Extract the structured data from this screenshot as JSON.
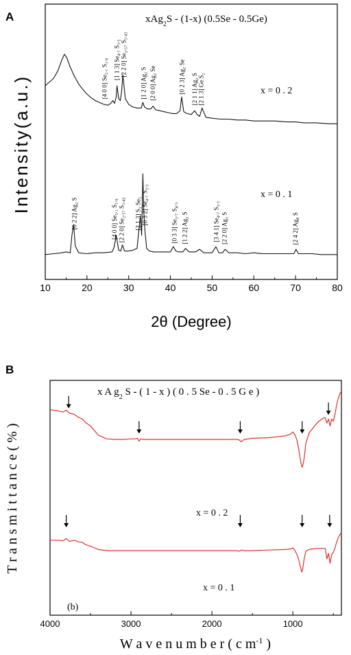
{
  "chart_data": [
    {
      "panel_label": "A",
      "type": "line",
      "title": "xAg2S - (1-x) (0.5Se - 0.5Ge)",
      "xlabel": "2θ (Degree)",
      "ylabel": "Intensity(a.u.)",
      "xlim": [
        10,
        80
      ],
      "xticks": [
        10,
        20,
        30,
        40,
        50,
        60,
        70,
        80
      ],
      "grid": false,
      "series": [
        {
          "name": "x = 0.2",
          "x": [
            10,
            11,
            12,
            13,
            14,
            14.6,
            15.2,
            16,
            17,
            18,
            19,
            20,
            21,
            22,
            23,
            24,
            25,
            25.7,
            26.2,
            26.6,
            27,
            27.2,
            27.6,
            28,
            28.3,
            28.6,
            29.2,
            30,
            31,
            32,
            33,
            33.4,
            33.8,
            34.5,
            35.3,
            35.8,
            36.5,
            37.5,
            38.5,
            39.5,
            40.5,
            41.5,
            42.3,
            42.7,
            43.2,
            44,
            45,
            45.8,
            46.4,
            47,
            47.6,
            48.5,
            50,
            52,
            54,
            56,
            58,
            60,
            62,
            65,
            68,
            70,
            72,
            75,
            78,
            80
          ],
          "y": [
            0.46,
            0.5,
            0.54,
            0.62,
            0.74,
            0.8,
            0.76,
            0.66,
            0.56,
            0.48,
            0.42,
            0.37,
            0.33,
            0.3,
            0.28,
            0.26,
            0.25,
            0.27,
            0.3,
            0.27,
            0.34,
            0.46,
            0.32,
            0.3,
            0.4,
            0.58,
            0.32,
            0.26,
            0.23,
            0.22,
            0.22,
            0.28,
            0.23,
            0.21,
            0.21,
            0.24,
            0.2,
            0.19,
            0.18,
            0.17,
            0.16,
            0.16,
            0.19,
            0.34,
            0.18,
            0.16,
            0.15,
            0.19,
            0.15,
            0.13,
            0.22,
            0.12,
            0.11,
            0.1,
            0.1,
            0.09,
            0.09,
            0.08,
            0.08,
            0.08,
            0.07,
            0.07,
            0.06,
            0.06,
            0.05,
            0.05
          ]
        },
        {
          "name": "x = 0.1",
          "x": [
            10,
            12,
            14,
            15,
            16,
            16.4,
            16.8,
            17.2,
            18,
            20,
            22,
            24,
            26,
            26.5,
            27,
            27.6,
            28.1,
            28.5,
            29,
            30,
            31,
            32,
            32.4,
            32.8,
            33.1,
            33.4,
            33.6,
            33.9,
            34.3,
            35,
            36,
            38,
            40,
            40.7,
            41.3,
            42,
            43,
            43.6,
            44.5,
            46,
            47,
            48,
            49,
            50,
            50.9,
            51.6,
            52.5,
            53.1,
            54,
            56,
            58,
            60,
            62,
            64,
            66,
            68,
            69.6,
            70.1,
            70.7,
            72,
            74,
            76,
            78,
            80
          ],
          "y": [
            0.08,
            0.09,
            0.1,
            0.11,
            0.1,
            0.3,
            0.42,
            0.18,
            0.1,
            0.09,
            0.1,
            0.1,
            0.11,
            0.16,
            0.3,
            0.13,
            0.12,
            0.19,
            0.12,
            0.12,
            0.13,
            0.15,
            0.34,
            0.52,
            0.3,
            1.0,
            0.6,
            0.35,
            0.15,
            0.12,
            0.11,
            0.11,
            0.11,
            0.17,
            0.12,
            0.11,
            0.11,
            0.15,
            0.11,
            0.11,
            0.14,
            0.1,
            0.1,
            0.1,
            0.17,
            0.1,
            0.1,
            0.14,
            0.1,
            0.1,
            0.09,
            0.1,
            0.09,
            0.09,
            0.09,
            0.09,
            0.09,
            0.14,
            0.09,
            0.09,
            0.09,
            0.08,
            0.08,
            0.08
          ]
        }
      ],
      "annotations_top": [
        {
          "x": 24.2,
          "text": "[4 0 0] Se₅.₁ S₁.₉"
        },
        {
          "x": 27.2,
          "text": "[1 1 3] Se₄.₇ S₃.₃"
        },
        {
          "x": 28.8,
          "text": "[2 2 0] Se₂.₅₇ S₅.₄₃"
        },
        {
          "x": 33.6,
          "text": "[1 2 0] Ag₂ S"
        },
        {
          "x": 35.8,
          "text": "[2 0 0] Ag₂ Se"
        },
        {
          "x": 42.8,
          "text": "[0 2 3] Ag₂ Se"
        },
        {
          "x": 45.8,
          "text": "[2 1 1] Ag₂ S"
        },
        {
          "x": 47.4,
          "text": "[2 1 3] Ge S₂"
        }
      ],
      "annotations_bottom": [
        {
          "x": 17.0,
          "text": "[0 2 2] Ag₂ S"
        },
        {
          "x": 26.6,
          "text": "[4 0 0] Se₅.₁ S₁.₉"
        },
        {
          "x": 28.3,
          "text": "[2 2 0] Se₂.₅₇ S₅.₄₃"
        },
        {
          "x": 32.3,
          "text": "[2 1 3] S₃ Se₅"
        },
        {
          "x": 33.9,
          "text": "[0 3 2] Se₄.₇ S₃.₃"
        },
        {
          "x": 41.0,
          "text": "[0 3 3] Se₂.₇ S₄.₃"
        },
        {
          "x": 43.4,
          "text": "[1 2 2] Ag₂ S"
        },
        {
          "x": 51.0,
          "text": "[3 4 1] Se₄.₇ S₃.₃"
        },
        {
          "x": 53.0,
          "text": "[2 2 0] Ag₂ S"
        },
        {
          "x": 70.0,
          "text": "[2 4 2] Ag₈ S"
        }
      ]
    },
    {
      "panel_label": "B",
      "type": "line",
      "title": "x A g₂ S - ( 1 - x ) ( 0 . 5 Se - 0 . 5 G e )",
      "xlabel": "W a v e  n u m b e r ( c m⁻¹ )",
      "ylabel": "T r a n s m i t t a n c e ( % )",
      "xlim": [
        4000,
        400
      ],
      "xticks": [
        4000,
        3000,
        2000,
        1000
      ],
      "grid": false,
      "inner_label": "(b)",
      "series": [
        {
          "name": "x = 0.2",
          "color": "#e0302a",
          "x": [
            4000,
            3900,
            3840,
            3800,
            3760,
            3700,
            3650,
            3600,
            3560,
            3500,
            3450,
            3400,
            3300,
            3200,
            3100,
            3000,
            2950,
            2920,
            2900,
            2880,
            2850,
            2800,
            2600,
            2400,
            2200,
            2000,
            1800,
            1700,
            1660,
            1640,
            1600,
            1500,
            1300,
            1100,
            1030,
            1000,
            970,
            950,
            930,
            910,
            890,
            880,
            860,
            840,
            800,
            760,
            720,
            680,
            640,
            620,
            600,
            580,
            560,
            540,
            520,
            500,
            480,
            460,
            440,
            420,
            400
          ],
          "y": [
            0.78,
            0.76,
            0.74,
            0.77,
            0.72,
            0.7,
            0.65,
            0.62,
            0.56,
            0.5,
            0.42,
            0.34,
            0.28,
            0.27,
            0.27,
            0.28,
            0.28,
            0.29,
            0.24,
            0.28,
            0.27,
            0.27,
            0.27,
            0.27,
            0.27,
            0.27,
            0.27,
            0.27,
            0.26,
            0.23,
            0.27,
            0.29,
            0.3,
            0.33,
            0.36,
            0.4,
            0.34,
            0.26,
            0.12,
            -0.05,
            -0.2,
            -0.2,
            -0.05,
            0.2,
            0.38,
            0.45,
            0.52,
            0.58,
            0.62,
            0.64,
            0.64,
            0.55,
            0.62,
            0.5,
            0.62,
            0.58,
            0.7,
            0.85,
            0.97,
            1.05,
            1.1
          ]
        },
        {
          "name": "x = 0.1",
          "color": "#e0302a",
          "x": [
            4000,
            3900,
            3840,
            3800,
            3760,
            3700,
            3650,
            3600,
            3560,
            3500,
            3450,
            3400,
            3300,
            3100,
            2900,
            2700,
            2500,
            2300,
            2100,
            1900,
            1700,
            1660,
            1640,
            1600,
            1500,
            1300,
            1100,
            1030,
            1000,
            970,
            950,
            930,
            910,
            890,
            880,
            860,
            840,
            800,
            760,
            700,
            640,
            600,
            580,
            560,
            540,
            520,
            500,
            480,
            460,
            440,
            420,
            400
          ],
          "y": [
            0.14,
            0.14,
            0.13,
            0.17,
            0.12,
            0.14,
            0.11,
            0.1,
            0.06,
            0.03,
            0.0,
            -0.03,
            -0.05,
            -0.05,
            -0.05,
            -0.05,
            -0.05,
            -0.05,
            -0.05,
            -0.05,
            -0.05,
            -0.06,
            -0.04,
            -0.05,
            -0.05,
            -0.04,
            -0.03,
            -0.02,
            0.0,
            -0.06,
            -0.12,
            -0.2,
            -0.32,
            -0.44,
            -0.4,
            -0.2,
            -0.06,
            -0.03,
            -0.02,
            -0.01,
            -0.01,
            -0.01,
            -0.2,
            -0.1,
            -0.28,
            -0.12,
            -0.08,
            0.0,
            0.1,
            0.18,
            0.24,
            0.28
          ]
        }
      ],
      "arrows": [
        {
          "series": "x = 0.2",
          "x": 3770
        },
        {
          "series": "x = 0.2",
          "x": 2900
        },
        {
          "series": "x = 0.2",
          "x": 1650
        },
        {
          "series": "x = 0.2",
          "x": 885
        },
        {
          "series": "x = 0.2",
          "x": 560
        },
        {
          "series": "x = 0.1",
          "x": 3800
        },
        {
          "series": "x = 0.1",
          "x": 1650
        },
        {
          "series": "x = 0.1",
          "x": 885
        },
        {
          "series": "x = 0.1",
          "x": 545
        }
      ]
    }
  ],
  "panelA": {
    "label": "A",
    "title_text": "xAg",
    "title_sub": "2",
    "title_rest": "S - (1-x) (0.5Se - 0.5Ge)",
    "xlabel": "2θ (Degree)",
    "ylabel": "Intensity(a.u.)",
    "series_top_label": "x = 0 . 2",
    "series_bottom_label": "x = 0 . 1"
  },
  "panelB": {
    "label": "B",
    "title_text": "x A g",
    "title_sub": "2",
    "title_rest": " S - ( 1 - x ) ( 0 . 5 Se - 0 . 5 G e )",
    "xlabel_main": "W a v e  n u m b e r ( c m",
    "xlabel_sup": "-1",
    "xlabel_end": " )",
    "ylabel": "T r a n s m i t t a n c e ( % )",
    "inner_label": "(b)",
    "series_top_label": "x = 0 . 2",
    "series_bottom_label": "x = 0 . 1"
  }
}
